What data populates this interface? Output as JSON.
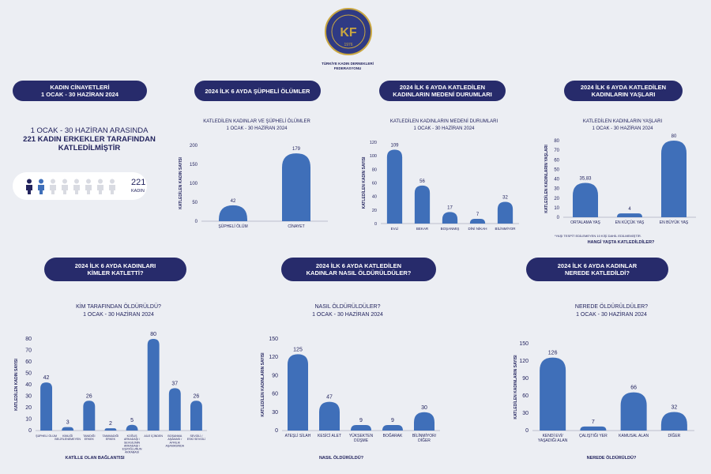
{
  "org": {
    "name": "TÜRKİYE KADIN DERNEKLERİ FEDERASYONU",
    "logo_year": "1976"
  },
  "colors": {
    "navy": "#272b6b",
    "bar": "#3f6fb9",
    "text": "#23245e",
    "background": "#eceef3"
  },
  "summary": {
    "header": "KADIN CİNAYETLERİ\n1 OCAK - 30 HAZİRAN 2024",
    "line1": "1 OCAK - 30 HAZİRAN ARASINDA",
    "line2": "221 KADIN ERKEKLER TARAFINDAN",
    "line3": "KATLEDİLMİŞTİR",
    "count": "221",
    "count_label": "KADIN",
    "pictogram_filled": 2,
    "pictogram_total": 8
  },
  "headers": {
    "suspicious": "2024 İLK 6 AYDA ŞÜPHELİ ÖLÜMLER",
    "marital": "2024 İLK 6 AYDA KATLEDİLEN\nKADINLARIN MEDENİ DURUMLARI",
    "ages": "2024 İLK 6 AYDA  KATLEDİLEN\nKADINLARIN YAŞLARI",
    "killers": "2024 İLK 6 AYDA KADINLARI\nKİMLER KATLETTİ?",
    "methods": "2024 İLK 6 AYDA KATLEDİLEN\nKADINLAR NASIL ÖLDÜRÜLDÜLER?",
    "places": "2024 İLK 6 AYDA KADINLAR\nNEREDE KATLEDİLDİ?"
  },
  "chart_data": [
    {
      "id": "suspicious",
      "type": "bar",
      "title": "KATLEDİLEN KADINLAR VE ŞÜPHELİ ÖLÜMLER",
      "subtitle": "1 OCAK - 30 HAZİRAN 2024",
      "ylabel": "KATLEDİLEN KADIN SAYISI",
      "xlabel": "",
      "categories": [
        "ŞÜPHELİ ÖLÜM",
        "CİNAYET"
      ],
      "values": [
        42,
        179
      ],
      "ylim": [
        0,
        200
      ],
      "yticks": [
        0,
        50,
        100,
        150,
        200
      ],
      "value_labels": [
        "42",
        "179"
      ],
      "note": ""
    },
    {
      "id": "marital",
      "type": "bar",
      "title": "KATLEDİLEN KADINLARIN MEDENİ DURUMLARI",
      "subtitle": "1 OCAK - 30 HAZİRAN 2024",
      "ylabel": "KATLEDİLEN KADIN SAYISI",
      "xlabel": "",
      "categories": [
        "EVLİ",
        "BEKAR",
        "BOŞANMIŞ",
        "DİNİ NİKAH",
        "BİLİNMİYOR"
      ],
      "values": [
        109,
        56,
        17,
        7,
        32
      ],
      "ylim": [
        0,
        120
      ],
      "yticks": [
        0,
        20,
        40,
        60,
        80,
        100,
        120
      ],
      "value_labels": [
        "109",
        "56",
        "17",
        "7",
        "32"
      ],
      "note": ""
    },
    {
      "id": "ages",
      "type": "bar",
      "title": "KATLEDİLEN KADINLARIN YAŞLARI",
      "subtitle": "1 OCAK - 30 HAZİRAN 2024",
      "ylabel": "KATLEDİLEN KADINLARIN YAŞLARI",
      "xlabel": "HANGİ YAŞTA KATLEDİLDİLER?",
      "categories": [
        "ORTALAMA YAŞ",
        "EN KÜÇÜK YAŞ",
        "EN BÜYÜK YAŞ"
      ],
      "values": [
        35.83,
        4,
        80
      ],
      "ylim": [
        0,
        80
      ],
      "yticks": [
        0,
        10,
        20,
        30,
        40,
        50,
        60,
        70,
        80
      ],
      "value_labels": [
        "35,83",
        "4",
        "80"
      ],
      "note": "*YAŞI TESPİT EDİLEMEYEN 10 KİŞİ DAHİL EDİLMEMİŞTİR."
    },
    {
      "id": "killers",
      "type": "bar",
      "title": "KİM TARAFINDAN ÖLDÜRÜLDÜ?",
      "subtitle": "1 OCAK - 30 HAZİRAN 2024",
      "ylabel": "KATLEDİLEN KADIN SAYISI",
      "xlabel": "KATİLLE OLAN BAĞLANTISI",
      "categories": [
        "ŞÜPHELİ ÖLÜM",
        "KİMLİĞİ BELİRLENEMEYEN",
        "TANIDIĞI ERKEK",
        "TANIMADIĞI ERKEK",
        "KOĞUŞ ARKADAŞI / SEVGİLİNİN ARKADAŞI / EŞİ/OĞLUNUN AKRABASI",
        "AİLE İÇİNDEN",
        "BOŞANMA AŞAMASI / AYRILIK AŞAMASINDA",
        "SEVGİLİ / ESKİ SEVGİLİ"
      ],
      "values": [
        42,
        3,
        26,
        2,
        5,
        80,
        37,
        26
      ],
      "ylim": [
        0,
        80
      ],
      "yticks": [
        0,
        10,
        20,
        30,
        40,
        50,
        60,
        70,
        80
      ],
      "value_labels": [
        "42",
        "3",
        "26",
        "2",
        "5",
        "80",
        "37",
        "26"
      ],
      "note": ""
    },
    {
      "id": "methods",
      "type": "bar",
      "title": "NASIL ÖLDÜRÜLDÜLER?",
      "subtitle": "1 OCAK - 30 HAZİRAN 2024",
      "ylabel": "KATLEDİLEN KADINLARIN SAYISI",
      "xlabel": "NASIL ÖLDÜRÜLDÜ?",
      "categories": [
        "ATEŞLİ SİLAH",
        "KESİCİ ALET",
        "YÜKSEKTEN DÜŞME",
        "BOĞARAK",
        "BİLİNMİYOR/ DİĞER"
      ],
      "values": [
        125,
        47,
        9,
        9,
        30
      ],
      "ylim": [
        0,
        150
      ],
      "yticks": [
        0,
        30,
        60,
        90,
        120,
        150
      ],
      "value_labels": [
        "125",
        "47",
        "9",
        "9",
        "30"
      ],
      "note": ""
    },
    {
      "id": "places",
      "type": "bar",
      "title": "NEREDE ÖLDÜRÜLDÜLER?",
      "subtitle": "1 OCAK - 30 HAZİRAN 2024",
      "ylabel": "KATLEDİLEN KADINLARIN SAYISI",
      "xlabel": "NEREDE ÖLDÜRÜLDÜ?",
      "categories": [
        "KENDİ EVİ/ YAŞADIĞI ALAN",
        "ÇALIŞTIĞI YER",
        "KAMUSAL ALAN",
        "DİĞER"
      ],
      "values": [
        126,
        7,
        66,
        32
      ],
      "ylim": [
        0,
        150
      ],
      "yticks": [
        0,
        30,
        60,
        90,
        120,
        150
      ],
      "value_labels": [
        "126",
        "7",
        "66",
        "32"
      ],
      "note": ""
    }
  ]
}
